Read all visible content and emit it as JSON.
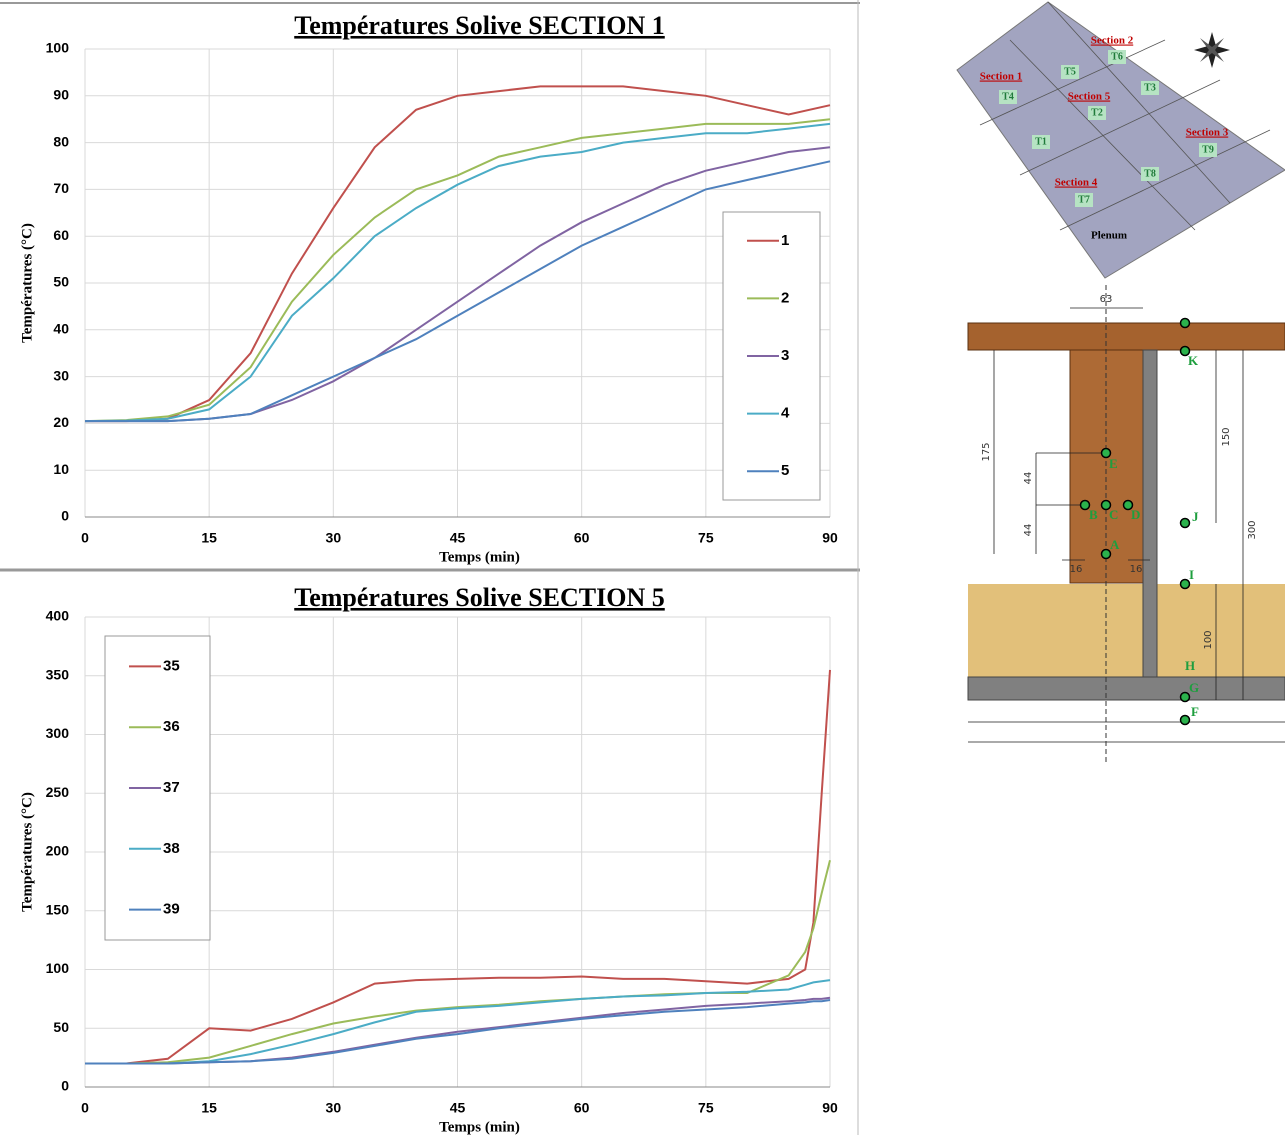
{
  "chart_data": [
    {
      "type": "line",
      "title": "Températures Solive SECTION 1",
      "x_label": "Temps (min)",
      "y_label": "Températures (°C)",
      "x": [
        0,
        5,
        10,
        15,
        20,
        25,
        30,
        35,
        40,
        45,
        50,
        55,
        60,
        65,
        70,
        75,
        80,
        85,
        90
      ],
      "series": [
        {
          "name": "1",
          "color": "#c0504d",
          "values": [
            20.5,
            20.5,
            21,
            25,
            35,
            52,
            66,
            79,
            87,
            90,
            91,
            92,
            92,
            92,
            91,
            90,
            88,
            86,
            88
          ]
        },
        {
          "name": "2",
          "color": "#9bbb59",
          "values": [
            20.5,
            20.7,
            21.5,
            24,
            32,
            46,
            56,
            64,
            70,
            73,
            77,
            79,
            81,
            82,
            83,
            84,
            84,
            84,
            85
          ]
        },
        {
          "name": "3",
          "color": "#8064a2",
          "values": [
            20.5,
            20.5,
            20.5,
            21,
            22,
            25,
            29,
            34,
            40,
            46,
            52,
            58,
            63,
            67,
            71,
            74,
            76,
            78,
            79
          ]
        },
        {
          "name": "4",
          "color": "#4bacc6",
          "values": [
            20.5,
            20.6,
            21,
            23,
            30,
            43,
            51,
            60,
            66,
            71,
            75,
            77,
            78,
            80,
            81,
            82,
            82,
            83,
            84
          ]
        },
        {
          "name": "5",
          "color": "#4f81bd",
          "values": [
            20.5,
            20.5,
            20.5,
            21,
            22,
            26,
            30,
            34,
            38,
            43,
            48,
            53,
            58,
            62,
            66,
            70,
            72,
            74,
            76
          ]
        }
      ],
      "xlim": [
        0,
        90
      ],
      "xticks": [
        0,
        15,
        30,
        45,
        60,
        75,
        90
      ],
      "ylim": [
        0,
        100
      ],
      "yticks": [
        0,
        10,
        20,
        30,
        40,
        50,
        60,
        70,
        80,
        90,
        100
      ],
      "grid": true,
      "legend": "right"
    },
    {
      "type": "line",
      "title": "Températures Solive SECTION 5",
      "x_label": "Temps (min)",
      "y_label": "Températures (°C)",
      "x": [
        0,
        5,
        10,
        15,
        20,
        25,
        30,
        35,
        40,
        45,
        50,
        55,
        60,
        65,
        70,
        75,
        80,
        85,
        87,
        88,
        89,
        90
      ],
      "series": [
        {
          "name": "35",
          "color": "#c0504d",
          "values": [
            20,
            20,
            24,
            50,
            48,
            58,
            72,
            88,
            91,
            92,
            93,
            93,
            94,
            92,
            92,
            90,
            88,
            92,
            100,
            140,
            250,
            355
          ]
        },
        {
          "name": "36",
          "color": "#9bbb59",
          "values": [
            20,
            20,
            21,
            25,
            35,
            45,
            54,
            60,
            65,
            68,
            70,
            73,
            75,
            77,
            79,
            80,
            80,
            95,
            115,
            135,
            165,
            193
          ]
        },
        {
          "name": "37",
          "color": "#8064a2",
          "values": [
            20,
            20,
            20,
            21,
            22,
            25,
            30,
            36,
            42,
            47,
            51,
            55,
            59,
            63,
            66,
            69,
            71,
            73,
            74,
            75,
            75,
            76
          ]
        },
        {
          "name": "38",
          "color": "#4bacc6",
          "values": [
            20,
            20,
            20,
            22,
            28,
            36,
            45,
            55,
            64,
            67,
            69,
            72,
            75,
            77,
            78,
            80,
            81,
            83,
            87,
            89,
            90,
            91
          ]
        },
        {
          "name": "39",
          "color": "#4f81bd",
          "values": [
            20,
            20,
            20,
            21,
            22,
            24,
            29,
            35,
            41,
            45,
            50,
            54,
            58,
            61,
            64,
            66,
            68,
            71,
            72,
            73,
            73,
            74
          ]
        }
      ],
      "xlim": [
        0,
        90
      ],
      "xticks": [
        0,
        15,
        30,
        45,
        60,
        75,
        90
      ],
      "ylim": [
        0,
        400
      ],
      "yticks": [
        0,
        50,
        100,
        150,
        200,
        250,
        300,
        350,
        400
      ],
      "grid": true,
      "legend": "left"
    }
  ],
  "diagram": {
    "plan": {
      "sections": [
        "Section 1",
        "Section 2",
        "Section 5",
        "Section 3",
        "Section 4"
      ],
      "sensors": [
        "T4",
        "T5",
        "T6",
        "T2",
        "T3",
        "T1",
        "T9",
        "T8",
        "T7"
      ],
      "label": "Plenum"
    },
    "cross_section": {
      "dimensions": [
        "63",
        "175",
        "44",
        "44",
        "16",
        "16",
        "150",
        "300",
        "100"
      ],
      "points": [
        "K",
        "E",
        "B",
        "C",
        "D",
        "A",
        "J",
        "I",
        "H",
        "G",
        "F"
      ]
    }
  }
}
